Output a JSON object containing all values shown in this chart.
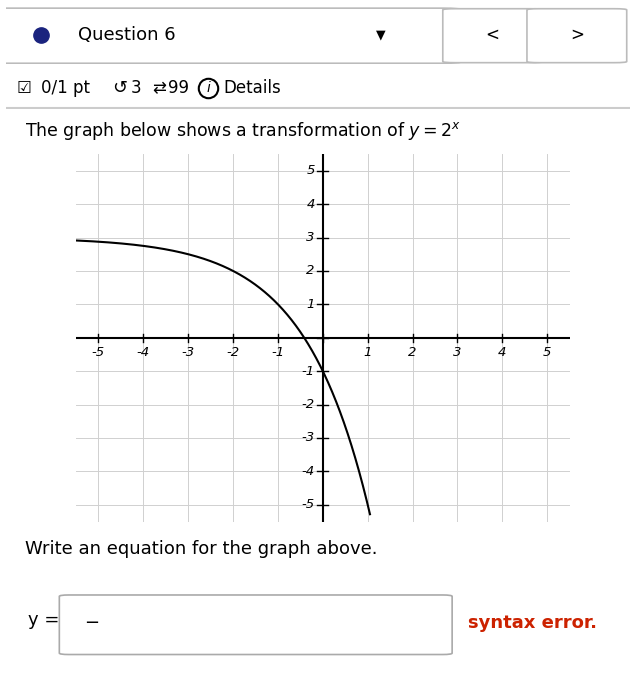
{
  "title_text": "The graph below shows a transformation of $y = 2^x$",
  "question_label": "Question 6",
  "write_eq_label": "Write an equation for the graph above.",
  "y_eq_label": "y =",
  "input_placeholder": "−",
  "syntax_error_label": "syntax error.",
  "curve_color": "#000000",
  "grid_color": "#d0d0d0",
  "axis_color": "#000000",
  "bg_color": "#ffffff",
  "syntax_error_color": "#cc2200",
  "dot_color": "#1a237e",
  "xlim": [
    -5.5,
    5.5
  ],
  "ylim": [
    -5.5,
    5.5
  ],
  "xticks": [
    -5,
    -4,
    -3,
    -2,
    -1,
    1,
    2,
    3,
    4,
    5
  ],
  "yticks": [
    -5,
    -4,
    -3,
    -2,
    -1,
    1,
    2,
    3,
    4,
    5
  ],
  "figsize": [
    6.33,
    7.0
  ],
  "dpi": 100
}
